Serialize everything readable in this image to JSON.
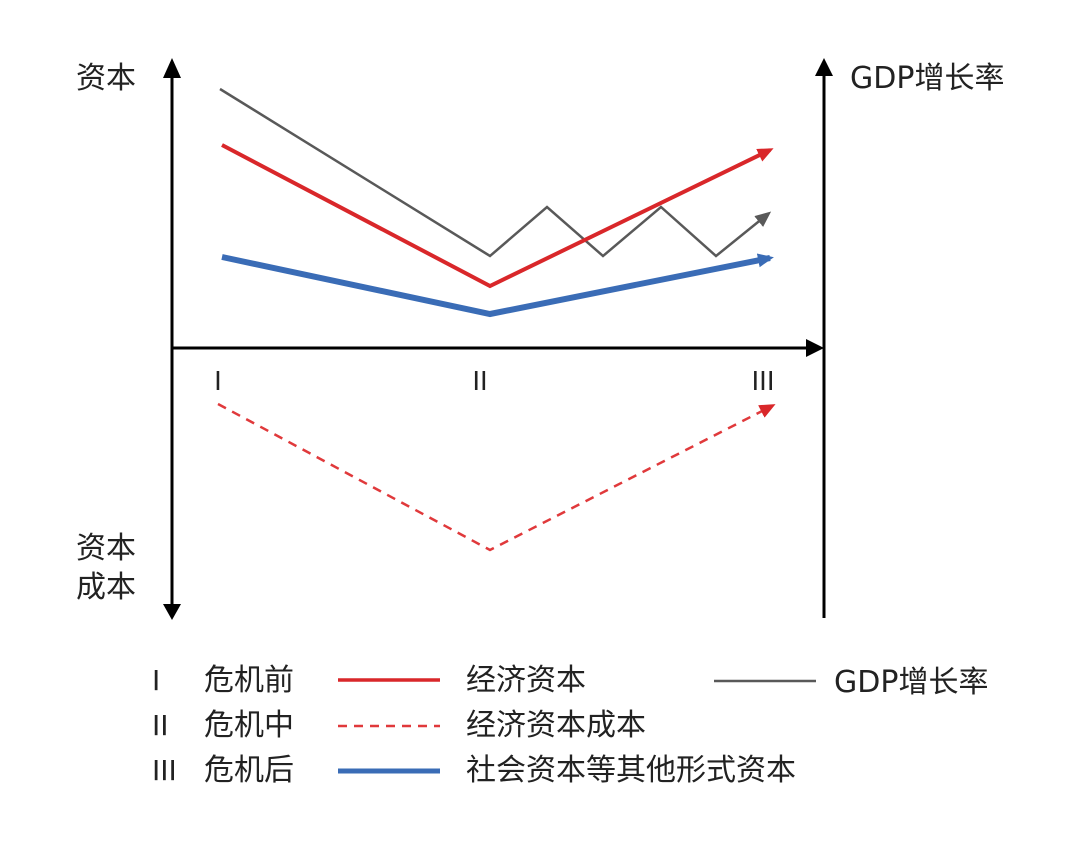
{
  "axes": {
    "left_top_label": "资本",
    "left_bottom_label_line1": "资本",
    "left_bottom_label_line2": "成本",
    "right_label": "GDP增长率",
    "phases": [
      "I",
      "II",
      "III"
    ]
  },
  "colors": {
    "economic_capital": "#d9272a",
    "economic_capital_cost": "#e0393b",
    "social_capital": "#3a6cb6",
    "gdp_growth": "#595959",
    "axis": "#000000"
  },
  "chart_data": {
    "type": "line",
    "x": [
      "I",
      "II",
      "III"
    ],
    "series": [
      {
        "name": "经济资本",
        "style": "solid-red",
        "values": [
          5.8,
          1.8,
          5.8
        ]
      },
      {
        "name": "社会资本等其他形式资本",
        "style": "solid-blue-thick",
        "values": [
          2.6,
          1.0,
          2.6
        ]
      },
      {
        "name": "GDP增长率",
        "style": "solid-gray-zigzag",
        "values": [
          7.3,
          2.6,
          3.9
        ]
      },
      {
        "name": "经济资本成本",
        "style": "dashed-red",
        "values": [
          -1.6,
          -5.7,
          -1.6
        ]
      }
    ]
  },
  "legend": {
    "phases": [
      {
        "roman": "I",
        "label": "危机前"
      },
      {
        "roman": "II",
        "label": "危机中"
      },
      {
        "roman": "III",
        "label": "危机后"
      }
    ],
    "series": [
      {
        "label": "经济资本",
        "style": "solid-red"
      },
      {
        "label": "经济资本成本",
        "style": "dashed-red"
      },
      {
        "label": "社会资本等其他形式资本",
        "style": "solid-blue"
      }
    ],
    "gdp": {
      "label": "GDP增长率",
      "style": "solid-gray"
    }
  }
}
